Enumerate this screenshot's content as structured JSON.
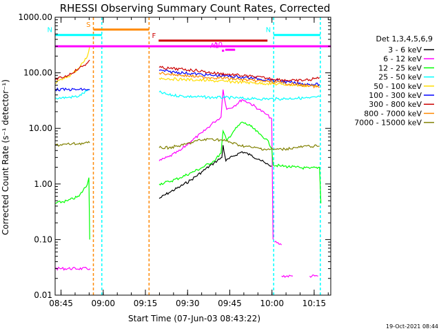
{
  "chart_data": {
    "type": "line",
    "title": "RHESSI Observing Summary Count Rates, Corrected",
    "xlabel": "Start Time (07-Jun-03 08:43:22)",
    "ylabel": "Corrected Count Rate (s⁻¹ detector⁻¹)",
    "y_scale": "log",
    "ylim": [
      0.01,
      1000
    ],
    "xlim_minutes": [
      -0.5,
      97.5
    ],
    "x_ticks": [
      {
        "m": 1.6,
        "label": "08:45"
      },
      {
        "m": 16.6,
        "label": "09:00"
      },
      {
        "m": 31.6,
        "label": "09:15"
      },
      {
        "m": 46.6,
        "label": "09:30"
      },
      {
        "m": 61.6,
        "label": "09:45"
      },
      {
        "m": 76.6,
        "label": "10:00"
      },
      {
        "m": 91.6,
        "label": "10:15"
      }
    ],
    "y_ticks": [
      {
        "v": 1000,
        "label": "1000.00"
      },
      {
        "v": 100,
        "label": "100.00"
      },
      {
        "v": 10,
        "label": "10.00"
      },
      {
        "v": 1,
        "label": "1.00"
      },
      {
        "v": 0.1,
        "label": "0.10"
      },
      {
        "v": 0.01,
        "label": "0.01"
      }
    ],
    "legend_title": "Det 1,3,4,5,6,9",
    "legend_position": "right",
    "series": [
      {
        "name": "3 - 6 keV",
        "color": "#000000",
        "points": [
          [
            36.5,
            0.55
          ],
          [
            40,
            0.7
          ],
          [
            44,
            0.9
          ],
          [
            48,
            1.2
          ],
          [
            52,
            1.7
          ],
          [
            56,
            2.4
          ],
          [
            58.8,
            3.0
          ],
          [
            59.2,
            5.0
          ],
          [
            60.2,
            2.6
          ],
          [
            63,
            3.2
          ],
          [
            66,
            3.8
          ],
          [
            69,
            3.3
          ],
          [
            72,
            2.8
          ],
          [
            74.5,
            2.3
          ],
          [
            76.5,
            2.1
          ]
        ]
      },
      {
        "name": "6 - 12 keV",
        "color": "#ff00ff",
        "points": [
          [
            -0.5,
            0.03
          ],
          [
            12,
            0.03
          ],
          null,
          [
            36.5,
            2.6
          ],
          [
            40,
            3.1
          ],
          [
            44,
            4.0
          ],
          [
            48,
            6.0
          ],
          [
            52,
            8.5
          ],
          [
            56,
            13
          ],
          [
            58.5,
            16
          ],
          [
            59.2,
            50
          ],
          [
            60.5,
            22
          ],
          [
            63,
            25
          ],
          [
            66,
            33
          ],
          [
            69,
            28
          ],
          [
            72,
            22
          ],
          [
            74.5,
            18
          ],
          [
            76.5,
            15
          ],
          [
            77,
            0.1
          ],
          null,
          [
            77.5,
            0.09
          ],
          [
            80,
            0.08
          ],
          null,
          [
            80,
            0.022
          ],
          [
            84,
            0.022
          ],
          null,
          [
            90,
            0.022
          ],
          [
            93,
            0.022
          ]
        ]
      },
      {
        "name": "12 - 25 keV",
        "color": "#00ff00",
        "points": [
          [
            -0.5,
            0.45
          ],
          [
            4,
            0.5
          ],
          [
            8,
            0.6
          ],
          [
            11,
            1.0
          ],
          [
            11.5,
            1.3
          ],
          [
            11.8,
            0.1
          ],
          null,
          [
            36.5,
            1.0
          ],
          [
            40,
            1.1
          ],
          [
            44,
            1.3
          ],
          [
            48,
            1.6
          ],
          [
            52,
            2.0
          ],
          [
            56,
            2.6
          ],
          [
            58.5,
            3.6
          ],
          [
            59.2,
            9
          ],
          [
            60.5,
            6
          ],
          [
            63,
            9
          ],
          [
            66,
            13
          ],
          [
            69,
            11
          ],
          [
            72,
            8
          ],
          [
            74.5,
            6.5
          ],
          [
            76.5,
            4.5
          ],
          [
            77,
            2.2
          ],
          [
            80,
            2.1
          ],
          [
            85,
            2.0
          ],
          [
            90,
            1.9
          ],
          [
            93.5,
            2.0
          ],
          [
            94,
            0.45
          ]
        ]
      },
      {
        "name": "25 - 50 keV",
        "color": "#00ffff",
        "points": [
          [
            -0.5,
            35
          ],
          [
            4,
            36
          ],
          [
            8,
            38
          ],
          [
            11,
            48
          ],
          [
            11.8,
            50
          ],
          null,
          [
            36.5,
            45
          ],
          [
            40,
            40
          ],
          [
            45,
            38
          ],
          [
            50,
            37
          ],
          [
            55,
            36
          ],
          [
            60,
            36
          ],
          [
            65,
            35
          ],
          [
            70,
            34
          ],
          [
            75,
            34
          ],
          [
            80,
            34
          ],
          [
            85,
            35
          ],
          [
            90,
            35
          ],
          [
            93.5,
            37
          ]
        ]
      },
      {
        "name": "50 - 100 keV",
        "color": "#ffdd00",
        "points": [
          [
            -0.5,
            65
          ],
          [
            4,
            85
          ],
          [
            8,
            120
          ],
          [
            11,
            200
          ],
          [
            11.8,
            300
          ],
          null,
          [
            36.5,
            80
          ],
          [
            40,
            78
          ],
          [
            45,
            76
          ],
          [
            50,
            74
          ],
          [
            55,
            72
          ],
          [
            60,
            70
          ],
          [
            65,
            68
          ],
          [
            70,
            66
          ],
          [
            75,
            64
          ],
          [
            80,
            62
          ],
          [
            85,
            60
          ],
          [
            90,
            58
          ],
          [
            93.5,
            60
          ]
        ]
      },
      {
        "name": "100 - 300 keV",
        "color": "#0000ff",
        "points": [
          [
            -0.5,
            50
          ],
          [
            4,
            50
          ],
          [
            8,
            50
          ],
          [
            11,
            50
          ],
          [
            11.8,
            50
          ],
          null,
          [
            36.5,
            110
          ],
          [
            40,
            105
          ],
          [
            45,
            100
          ],
          [
            50,
            95
          ],
          [
            55,
            90
          ],
          [
            60,
            88
          ],
          [
            65,
            84
          ],
          [
            70,
            80
          ],
          [
            75,
            75
          ],
          [
            80,
            70
          ],
          [
            85,
            65
          ],
          [
            90,
            62
          ],
          [
            93.5,
            62
          ]
        ]
      },
      {
        "name": "300 - 800 keV",
        "color": "#cc0000",
        "points": [
          [
            -0.5,
            75
          ],
          [
            4,
            90
          ],
          [
            8,
            120
          ],
          [
            11,
            150
          ],
          [
            11.8,
            170
          ],
          null,
          [
            36.5,
            125
          ],
          [
            40,
            120
          ],
          [
            45,
            115
          ],
          [
            50,
            110
          ],
          [
            55,
            100
          ],
          [
            60,
            95
          ],
          [
            65,
            90
          ],
          [
            70,
            85
          ],
          [
            75,
            80
          ],
          [
            80,
            75
          ],
          [
            85,
            72
          ],
          [
            90,
            75
          ],
          [
            93.5,
            82
          ]
        ]
      },
      {
        "name": "800 - 7000 keV",
        "color": "#ff8800",
        "points": [
          [
            36.5,
            100
          ],
          [
            40,
            95
          ],
          [
            45,
            90
          ],
          [
            50,
            85
          ],
          [
            55,
            82
          ],
          [
            60,
            80
          ],
          [
            65,
            76
          ],
          [
            70,
            72
          ],
          [
            75,
            70
          ],
          [
            80,
            66
          ],
          [
            85,
            62
          ],
          [
            90,
            58
          ],
          [
            93.5,
            55
          ]
        ]
      },
      {
        "name": "7000 - 15000 keV",
        "color": "#808000",
        "points": [
          [
            -0.5,
            5
          ],
          [
            11.8,
            5.5
          ],
          null,
          [
            36.5,
            4.5
          ],
          [
            40,
            4.5
          ],
          [
            45,
            5
          ],
          [
            50,
            6
          ],
          [
            55,
            6.5
          ],
          [
            60,
            6
          ],
          [
            65,
            5
          ],
          [
            70,
            4.5
          ],
          [
            75,
            4.2
          ],
          [
            80,
            4.2
          ],
          [
            85,
            4.5
          ],
          [
            90,
            4.8
          ],
          [
            93.5,
            4.8
          ]
        ]
      }
    ],
    "attenuator_lines": [
      {
        "color": "#ff8800",
        "x_minutes": [
          13.1,
          32.9
        ]
      },
      {
        "color": "#00ffff",
        "x_minutes": [
          16.1,
          77.2,
          93.8
        ]
      }
    ],
    "state_bars": [
      {
        "label": "S",
        "color": "#ff8800",
        "x_start": 13.1,
        "x_end": 32.9,
        "level": 600
      },
      {
        "label": "N",
        "color": "#00ffff",
        "x_start": -0.5,
        "x_end": 16.1,
        "level": 480
      },
      {
        "label": "N",
        "color": "#00ffff",
        "x_start": 77.2,
        "x_end": 93.8,
        "level": 480
      },
      {
        "label": "F",
        "color": "#cc0000",
        "x_start": 36.3,
        "x_end": 75.0,
        "level": 380
      },
      {
        "label": "",
        "color": "#ff00ff",
        "x_start": -0.5,
        "x_end": 97.5,
        "level": 300
      },
      {
        "label": "A1",
        "color": "#ff00ff",
        "x_start": 58.8,
        "x_end": 59.6,
        "level": 250
      },
      {
        "label": "A0",
        "color": "#ff00ff",
        "x_start": 60.0,
        "x_end": 63.5,
        "level": 260
      }
    ],
    "timestamp": "19-Oct-2021 08:44"
  }
}
